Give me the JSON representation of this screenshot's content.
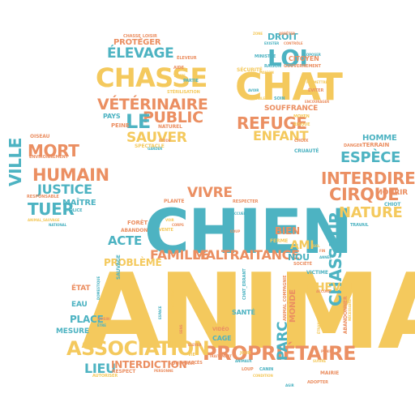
{
  "colors": {
    "yellow": "#f4c95d",
    "teal": "#4db3c2",
    "orange": "#eb8f62"
  },
  "words": [
    {
      "text": "ANIMAL",
      "color": "yellow"
    },
    {
      "text": "CHIEN",
      "color": "teal"
    },
    {
      "text": "CHAT",
      "color": "yellow"
    },
    {
      "text": "CHASSE",
      "color": "yellow"
    },
    {
      "text": "PROPRIÉTAIRE",
      "color": "orange"
    },
    {
      "text": "ASSOCIATION",
      "color": "yellow"
    },
    {
      "text": "LOI",
      "color": "teal"
    },
    {
      "text": "ÉLEVAGE",
      "color": "teal"
    },
    {
      "text": "VÉTÉRINAIRE",
      "color": "orange"
    },
    {
      "text": "HUMAIN",
      "color": "orange"
    },
    {
      "text": "MORT",
      "color": "orange"
    },
    {
      "text": "VILLE",
      "color": "teal"
    },
    {
      "text": "JUSTICE",
      "color": "teal"
    },
    {
      "text": "TUER",
      "color": "teal"
    },
    {
      "text": "CHASSEUR",
      "color": "teal"
    },
    {
      "text": "INTERDIRE",
      "color": "orange"
    },
    {
      "text": "CIRQUE",
      "color": "orange"
    },
    {
      "text": "ESPÈCE",
      "color": "teal"
    },
    {
      "text": "NATURE",
      "color": "yellow"
    },
    {
      "text": "REFUGE",
      "color": "orange"
    },
    {
      "text": "ENFANT",
      "color": "yellow"
    },
    {
      "text": "PUBLIC",
      "color": "orange"
    },
    {
      "text": "LE",
      "color": "teal"
    },
    {
      "text": "SAUVER",
      "color": "yellow"
    },
    {
      "text": "FAMILLE",
      "color": "orange"
    },
    {
      "text": "MALTRAITANCE",
      "color": "orange"
    },
    {
      "text": "VIVRE",
      "color": "orange"
    },
    {
      "text": "ACTE",
      "color": "teal"
    },
    {
      "text": "PROBLÈME",
      "color": "yellow"
    },
    {
      "text": "CHEVAL",
      "color": "yellow"
    },
    {
      "text": "PARC",
      "color": "teal"
    },
    {
      "text": "LIEU",
      "color": "teal"
    },
    {
      "text": "INTERDICTION",
      "color": "orange"
    },
    {
      "text": "MONDE",
      "color": "orange"
    },
    {
      "text": "BIEN",
      "color": "orange"
    },
    {
      "text": "AMI",
      "color": "yellow"
    },
    {
      "text": "NOU",
      "color": "teal"
    },
    {
      "text": "DROIT",
      "color": "teal"
    },
    {
      "text": "HOMME",
      "color": "teal"
    },
    {
      "text": "MOURIR",
      "color": "orange"
    },
    {
      "text": "PLACE",
      "color": "teal"
    },
    {
      "text": "CITOYEN",
      "color": "orange"
    },
    {
      "text": "SOUFFRANCE",
      "color": "orange"
    },
    {
      "text": "PROTÉGER",
      "color": "orange"
    },
    {
      "text": "MAÎTRE",
      "color": "teal"
    },
    {
      "text": "EAU",
      "color": "teal"
    },
    {
      "text": "ÉTAT",
      "color": "orange"
    },
    {
      "text": "MESURE",
      "color": "teal"
    },
    {
      "text": "FORÊT",
      "color": "orange"
    },
    {
      "text": "ABANDON",
      "color": "orange"
    },
    {
      "text": "SANTÉ",
      "color": "teal"
    },
    {
      "text": "VIDÉO",
      "color": "orange"
    },
    {
      "text": "CAGE",
      "color": "teal"
    },
    {
      "text": "SÉCURITÉ",
      "color": "yellow"
    },
    {
      "text": "TERRAIN",
      "color": "orange"
    },
    {
      "text": "DANGER",
      "color": "orange"
    },
    {
      "text": "PAYS",
      "color": "teal"
    },
    {
      "text": "PEINE",
      "color": "orange"
    },
    {
      "text": "RESPECTER",
      "color": "orange"
    },
    {
      "text": "CHASSE_LOISIR",
      "color": "orange"
    },
    {
      "text": "STÉRILISATION",
      "color": "yellow"
    },
    {
      "text": "SPECTACLE",
      "color": "yellow"
    },
    {
      "text": "NATUREL",
      "color": "orange"
    },
    {
      "text": "PLANTE",
      "color": "orange"
    },
    {
      "text": "ENVIRONNEMENT",
      "color": "orange"
    },
    {
      "text": "RESPONSABLE",
      "color": "orange"
    },
    {
      "text": "POLICE",
      "color": "teal"
    },
    {
      "text": "OISEAU",
      "color": "orange"
    },
    {
      "text": "ANIMAL_SAUVAGE",
      "color": "yellow"
    },
    {
      "text": "NATIONAL",
      "color": "teal"
    },
    {
      "text": "SAUVAGE",
      "color": "teal"
    },
    {
      "text": "ABANDONNER",
      "color": "orange"
    },
    {
      "text": "ANIMAL_COMPAGNIE",
      "color": "orange"
    },
    {
      "text": "CHAT_ERRANT",
      "color": "teal"
    },
    {
      "text": "TRAVAIL",
      "color": "teal"
    },
    {
      "text": "VICTIME",
      "color": "teal"
    },
    {
      "text": "MAIRIE",
      "color": "orange"
    },
    {
      "text": "ADOPTER",
      "color": "orange"
    },
    {
      "text": "AUTORISER",
      "color": "yellow"
    },
    {
      "text": "SOUFFRIR",
      "color": "orange"
    },
    {
      "text": "VENTE",
      "color": "yellow"
    },
    {
      "text": "GOUVERNEMENT",
      "color": "orange"
    },
    {
      "text": "CRUAUTÉ",
      "color": "teal"
    },
    {
      "text": "ÉVITER",
      "color": "orange"
    },
    {
      "text": "ENCOURAGER",
      "color": "orange"
    },
    {
      "text": "RAISON",
      "color": "teal"
    },
    {
      "text": "POSSIBLE",
      "color": "yellow"
    },
    {
      "text": "PERMETTRE",
      "color": "yellow"
    },
    {
      "text": "PROPOSER",
      "color": "teal"
    },
    {
      "text": "CONTRÔLE",
      "color": "orange"
    },
    {
      "text": "MINISTRE",
      "color": "teal"
    },
    {
      "text": "MOYEN",
      "color": "yellow"
    },
    {
      "text": "RISQUE",
      "color": "yellow"
    },
    {
      "text": "CHOIX",
      "color": "orange"
    },
    {
      "text": "FERME",
      "color": "yellow"
    },
    {
      "text": "SOCIÉTÉ",
      "color": "orange"
    },
    {
      "text": "CHIOT",
      "color": "teal"
    },
    {
      "text": "SOIN",
      "color": "teal"
    },
    {
      "text": "ÉLEVEUR",
      "color": "orange"
    },
    {
      "text": "PARTIE",
      "color": "teal"
    },
    {
      "text": "TEMPS",
      "color": "yellow"
    },
    {
      "text": "AIDE",
      "color": "orange"
    },
    {
      "text": "AVOIR",
      "color": "teal"
    },
    {
      "text": "JOUR",
      "color": "yellow"
    },
    {
      "text": "LOUP",
      "color": "orange"
    },
    {
      "text": "CANIN",
      "color": "teal"
    },
    {
      "text": "ACCÈS",
      "color": "orange"
    },
    {
      "text": "VIE",
      "color": "yellow"
    },
    {
      "text": "NOURRIR",
      "color": "yellow"
    },
    {
      "text": "AGIR",
      "color": "teal"
    },
    {
      "text": "ACCORD",
      "color": "orange"
    },
    {
      "text": "ANNÉE",
      "color": "teal"
    },
    {
      "text": "FIN",
      "color": "orange"
    },
    {
      "text": "SOL",
      "color": "yellow"
    },
    {
      "text": "TERRITOIRE",
      "color": "yellow"
    },
    {
      "text": "VOISIN",
      "color": "orange"
    },
    {
      "text": "ÊTRE",
      "color": "teal"
    },
    {
      "text": "RESPECT",
      "color": "orange"
    },
    {
      "text": "PERSONNE",
      "color": "orange"
    },
    {
      "text": "CONDITION",
      "color": "yellow"
    },
    {
      "text": "COUP",
      "color": "orange"
    },
    {
      "text": "ACCUEIL",
      "color": "teal"
    },
    {
      "text": "CORPS",
      "color": "orange"
    },
    {
      "text": "VOIR",
      "color": "yellow"
    },
    {
      "text": "TRAITEMENT",
      "color": "orange"
    },
    {
      "text": "DEMANDE",
      "color": "orange"
    },
    {
      "text": "ESPACE",
      "color": "teal"
    },
    {
      "text": "NÉCESSAIRE",
      "color": "yellow"
    },
    {
      "text": "DOMESTIQUE",
      "color": "teal"
    },
    {
      "text": "ÉLEVER",
      "color": "orange"
    },
    {
      "text": "PUNIR",
      "color": "orange"
    },
    {
      "text": "SUIVRE",
      "color": "yellow"
    },
    {
      "text": "ANIMAUX",
      "color": "teal"
    },
    {
      "text": "ÉTUDE",
      "color": "orange"
    },
    {
      "text": "GARDER",
      "color": "teal"
    },
    {
      "text": "ÉTRANGER",
      "color": "yellow"
    },
    {
      "text": "SENS",
      "color": "orange"
    },
    {
      "text": "ARRÊTER",
      "color": "orange"
    },
    {
      "text": "EXISTER",
      "color": "teal"
    },
    {
      "text": "ZONE",
      "color": "yellow"
    },
    {
      "text": "CONDAMNER",
      "color": "orange"
    },
    {
      "text": "DÉCISION",
      "color": "teal"
    },
    {
      "text": "MAISON",
      "color": "yellow"
    },
    {
      "text": "ANIMAL_ÉLEVAGE",
      "color": "orange"
    },
    {
      "text": "PROTECTION",
      "color": "teal"
    }
  ]
}
